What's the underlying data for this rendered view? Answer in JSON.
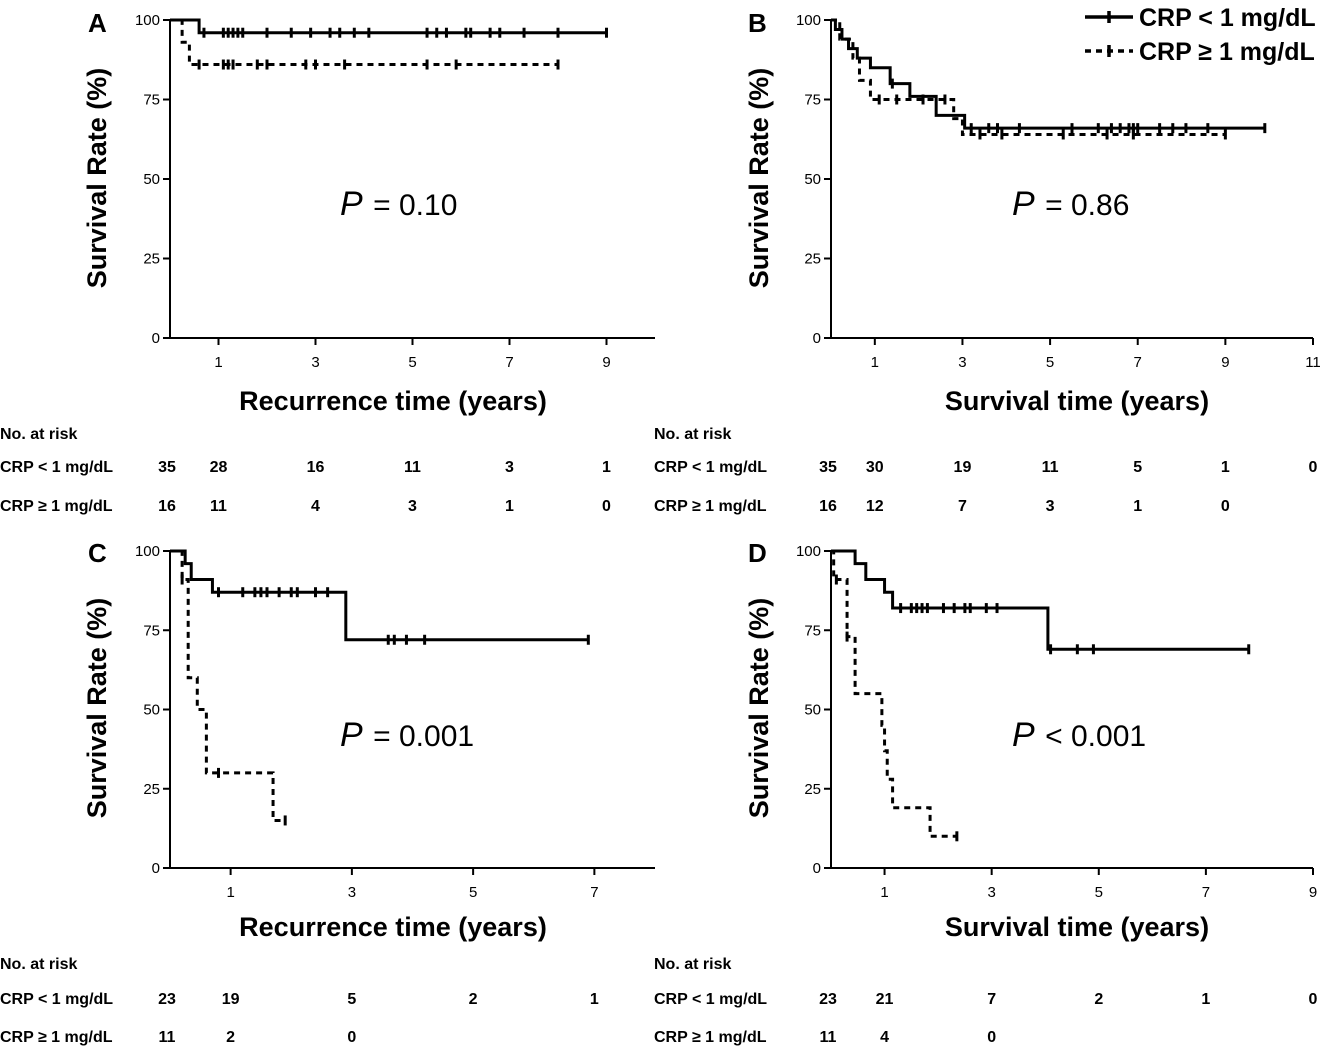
{
  "legend": {
    "entries": [
      {
        "label": "CRP < 1 mg/dL",
        "style": "solid"
      },
      {
        "label": "CRP ≥ 1 mg/dL",
        "style": "dashed"
      }
    ]
  },
  "chart_data": [
    {
      "panel": "A",
      "type": "line",
      "xlabel": "Recurrence time (years)",
      "ylabel": "Survival Rate (%)",
      "xlim": [
        0,
        10
      ],
      "ylim": [
        0,
        100
      ],
      "xticks": [
        1,
        3,
        5,
        7,
        9
      ],
      "yticks": [
        0,
        25,
        50,
        75,
        100
      ],
      "p_prefix": "P",
      "p_text": "= 0.10",
      "risk_header": "No. at risk",
      "series": [
        {
          "name": "CRP < 1 mg/dL",
          "style": "solid",
          "steps": [
            [
              0,
              100
            ],
            [
              0.6,
              96
            ],
            [
              9,
              96
            ]
          ],
          "censors": [
            0.7,
            1.1,
            1.2,
            1.3,
            1.4,
            1.5,
            2.0,
            2.5,
            2.9,
            3.3,
            3.5,
            3.8,
            4.1,
            5.3,
            5.5,
            5.7,
            6.1,
            6.2,
            6.6,
            6.8,
            7.3,
            8.0,
            9.0
          ]
        },
        {
          "name": "CRP ≥ 1 mg/dL",
          "style": "dashed",
          "steps": [
            [
              0,
              100
            ],
            [
              0.25,
              93
            ],
            [
              0.4,
              86
            ],
            [
              8,
              86
            ]
          ],
          "censors": [
            0.6,
            1.1,
            1.2,
            1.3,
            1.8,
            2.0,
            2.8,
            3.0,
            3.6,
            5.3,
            5.9,
            8.0
          ]
        }
      ],
      "risk": [
        {
          "label": "CRP < 1 mg/dL",
          "times": [
            0,
            1,
            3,
            5,
            7,
            9
          ],
          "counts": [
            "35",
            "28",
            "16",
            "11",
            "3",
            "1"
          ]
        },
        {
          "label": "CRP ≥ 1 mg/dL",
          "times": [
            0,
            1,
            3,
            5,
            7,
            9
          ],
          "counts": [
            "16",
            "11",
            "4",
            "3",
            "1",
            "0"
          ]
        }
      ]
    },
    {
      "panel": "B",
      "type": "line",
      "xlabel": "Survival time (years)",
      "ylabel": "Survival Rate (%)",
      "xlim": [
        0,
        11
      ],
      "ylim": [
        0,
        100
      ],
      "xticks": [
        1,
        3,
        5,
        7,
        9,
        11
      ],
      "yticks": [
        0,
        25,
        50,
        75,
        100
      ],
      "p_prefix": "P",
      "p_text": "= 0.86",
      "risk_header": "No. at risk",
      "series": [
        {
          "name": "CRP < 1 mg/dL",
          "style": "solid",
          "steps": [
            [
              0,
              100
            ],
            [
              0.1,
              97
            ],
            [
              0.25,
              94
            ],
            [
              0.4,
              91
            ],
            [
              0.6,
              88
            ],
            [
              0.9,
              85
            ],
            [
              1.35,
              80
            ],
            [
              1.8,
              76
            ],
            [
              2.4,
              70
            ],
            [
              3.05,
              66
            ],
            [
              9.9,
              66
            ]
          ],
          "censors": [
            1.4,
            3.2,
            3.6,
            3.8,
            4.3,
            5.5,
            6.1,
            6.4,
            6.6,
            6.8,
            6.9,
            7.0,
            7.5,
            7.8,
            8.1,
            8.6,
            9.9
          ]
        },
        {
          "name": "CRP ≥ 1 mg/dL",
          "style": "dashed",
          "steps": [
            [
              0,
              100
            ],
            [
              0.2,
              94
            ],
            [
              0.5,
              88
            ],
            [
              0.65,
              81
            ],
            [
              0.9,
              75
            ],
            [
              2.8,
              69
            ],
            [
              3.0,
              64
            ],
            [
              9.0,
              64
            ]
          ],
          "censors": [
            1.1,
            1.5,
            2.1,
            2.6,
            3.4,
            3.9,
            5.3,
            6.3,
            6.9,
            9.0
          ]
        }
      ],
      "risk": [
        {
          "label": "CRP < 1 mg/dL",
          "times": [
            0,
            1,
            3,
            5,
            7,
            9,
            11
          ],
          "counts": [
            "35",
            "30",
            "19",
            "11",
            "5",
            "1",
            "0"
          ]
        },
        {
          "label": "CRP ≥ 1 mg/dL",
          "times": [
            0,
            1,
            3,
            5,
            7,
            9
          ],
          "counts": [
            "16",
            "12",
            "7",
            "3",
            "1",
            "0"
          ]
        }
      ]
    },
    {
      "panel": "C",
      "type": "line",
      "xlabel": "Recurrence time (years)",
      "ylabel": "Survival Rate (%)",
      "xlim": [
        0,
        8
      ],
      "ylim": [
        0,
        100
      ],
      "xticks": [
        1,
        3,
        5,
        7
      ],
      "yticks": [
        0,
        25,
        50,
        75,
        100
      ],
      "p_prefix": "P",
      "p_text": "= 0.001",
      "risk_header": "No. at risk",
      "series": [
        {
          "name": "CRP < 1 mg/dL",
          "style": "solid",
          "steps": [
            [
              0,
              100
            ],
            [
              0.25,
              96
            ],
            [
              0.35,
              91
            ],
            [
              0.7,
              87
            ],
            [
              2.9,
              72
            ],
            [
              6.9,
              72
            ]
          ],
          "censors": [
            0.8,
            1.2,
            1.4,
            1.5,
            1.6,
            1.8,
            2.0,
            2.1,
            2.4,
            2.6,
            3.6,
            3.7,
            3.9,
            4.2,
            6.9
          ]
        },
        {
          "name": "CRP ≥ 1 mg/dL",
          "style": "dashed",
          "steps": [
            [
              0,
              100
            ],
            [
              0.2,
              91
            ],
            [
              0.3,
              60
            ],
            [
              0.45,
              50
            ],
            [
              0.6,
              30
            ],
            [
              1.7,
              15
            ],
            [
              1.9,
              15
            ]
          ],
          "censors": [
            0.2,
            0.8,
            1.9
          ]
        }
      ],
      "risk": [
        {
          "label": "CRP < 1 mg/dL",
          "times": [
            0,
            1,
            3,
            5,
            7
          ],
          "counts": [
            "23",
            "19",
            "5",
            "2",
            "1"
          ]
        },
        {
          "label": "CRP ≥ 1 mg/dL",
          "times": [
            0,
            1,
            3
          ],
          "counts": [
            "11",
            "2",
            "0"
          ]
        }
      ]
    },
    {
      "panel": "D",
      "type": "line",
      "xlabel": "Survival time (years)",
      "ylabel": "Survival Rate (%)",
      "xlim": [
        0,
        9
      ],
      "ylim": [
        0,
        100
      ],
      "xticks": [
        1,
        3,
        5,
        7,
        9
      ],
      "yticks": [
        0,
        25,
        50,
        75,
        100
      ],
      "p_prefix": "P",
      "p_text": "< 0.001",
      "risk_header": "No. at risk",
      "series": [
        {
          "name": "CRP < 1 mg/dL",
          "style": "solid",
          "steps": [
            [
              0,
              100
            ],
            [
              0.45,
              96
            ],
            [
              0.65,
              91
            ],
            [
              1.0,
              87
            ],
            [
              1.15,
              82
            ],
            [
              4.05,
              69
            ],
            [
              7.8,
              69
            ]
          ],
          "censors": [
            1.3,
            1.5,
            1.6,
            1.7,
            1.8,
            2.1,
            2.3,
            2.5,
            2.6,
            2.9,
            3.1,
            4.1,
            4.6,
            4.9,
            7.8
          ]
        },
        {
          "name": "CRP ≥ 1 mg/dL",
          "style": "dashed",
          "steps": [
            [
              0,
              100
            ],
            [
              0.05,
              91
            ],
            [
              0.3,
              73
            ],
            [
              0.45,
              55
            ],
            [
              0.95,
              45
            ],
            [
              1.0,
              37
            ],
            [
              1.05,
              28
            ],
            [
              1.15,
              19
            ],
            [
              1.85,
              10
            ],
            [
              2.35,
              10
            ]
          ],
          "censors": [
            0.1,
            0.3,
            2.35
          ]
        }
      ],
      "risk": [
        {
          "label": "CRP < 1 mg/dL",
          "times": [
            0,
            1,
            3,
            5,
            7,
            9
          ],
          "counts": [
            "23",
            "21",
            "7",
            "2",
            "1",
            "0"
          ]
        },
        {
          "label": "CRP ≥ 1 mg/dL",
          "times": [
            0,
            1,
            3
          ],
          "counts": [
            "11",
            "4",
            "0"
          ]
        }
      ]
    }
  ]
}
